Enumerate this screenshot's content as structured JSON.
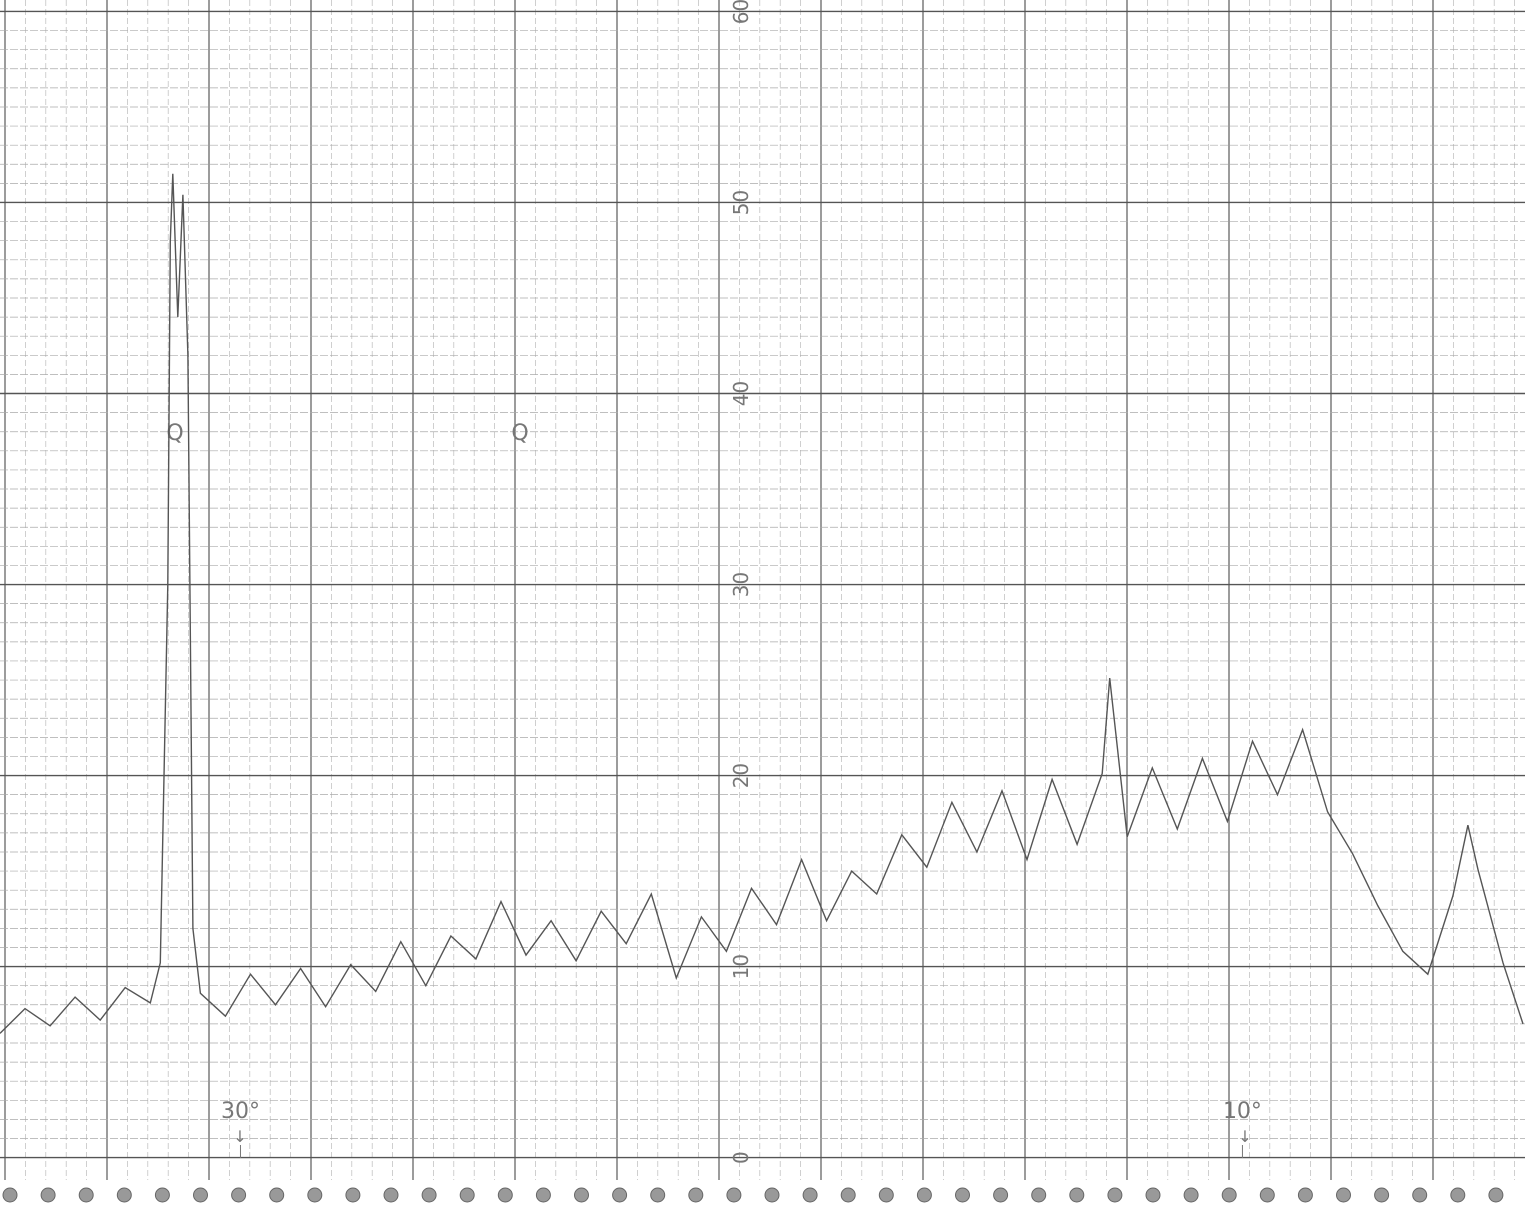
{
  "chart_data": {
    "type": "line",
    "x": [
      34.8,
      34.3,
      33.8,
      33.3,
      32.8,
      32.3,
      31.8,
      31.6,
      31.45,
      31.4,
      31.35,
      31.25,
      31.15,
      31.05,
      30.95,
      30.8,
      30.3,
      29.8,
      29.3,
      28.8,
      28.3,
      27.8,
      27.3,
      26.8,
      26.3,
      25.8,
      25.3,
      24.8,
      24.3,
      23.8,
      23.3,
      22.8,
      22.3,
      21.8,
      21.3,
      20.8,
      20.3,
      19.8,
      19.3,
      18.8,
      18.3,
      17.8,
      17.3,
      16.8,
      16.3,
      15.8,
      15.3,
      14.8,
      14.3,
      13.8,
      13.3,
      12.8,
      12.65,
      12.3,
      11.8,
      11.3,
      10.8,
      10.3,
      9.8,
      9.3,
      8.8,
      8.3,
      7.8,
      7.3,
      6.8,
      6.3,
      5.8,
      5.5,
      5.3,
      4.8,
      4.4
    ],
    "series": [
      {
        "color": "#555555",
        "values": [
          6.5,
          7.8,
          6.9,
          8.4,
          7.2,
          8.9,
          8.1,
          10.2,
          30,
          48,
          51.5,
          44,
          50.4,
          42,
          12,
          8.6,
          7.4,
          9.6,
          8.0,
          9.9,
          7.9,
          10.1,
          8.7,
          11.3,
          9.0,
          11.6,
          10.4,
          13.4,
          10.6,
          12.4,
          10.3,
          12.9,
          11.2,
          13.8,
          9.4,
          12.6,
          10.8,
          14.1,
          12.2,
          15.6,
          12.4,
          15.0,
          13.8,
          16.9,
          15.2,
          18.6,
          16.0,
          19.2,
          15.6,
          19.8,
          16.4,
          20.1,
          25.1,
          16.8,
          20.4,
          17.2,
          20.9,
          17.6,
          21.8,
          19.0,
          22.4,
          18.1,
          15.9,
          13.2,
          10.8,
          9.6,
          13.7,
          17.4,
          15.1,
          10.2,
          7.0
        ]
      }
    ],
    "xlim": [
      34.8,
      4.36
    ],
    "xticks": [
      {
        "value": 30,
        "label": "30°"
      },
      {
        "value": 10,
        "label": "10°"
      }
    ],
    "ylim": [
      -2.9,
      60.6
    ],
    "yticks": [
      0,
      10,
      20,
      30,
      40,
      50,
      60
    ],
    "annotations": [
      "Q",
      "Q"
    ],
    "grid": true
  }
}
